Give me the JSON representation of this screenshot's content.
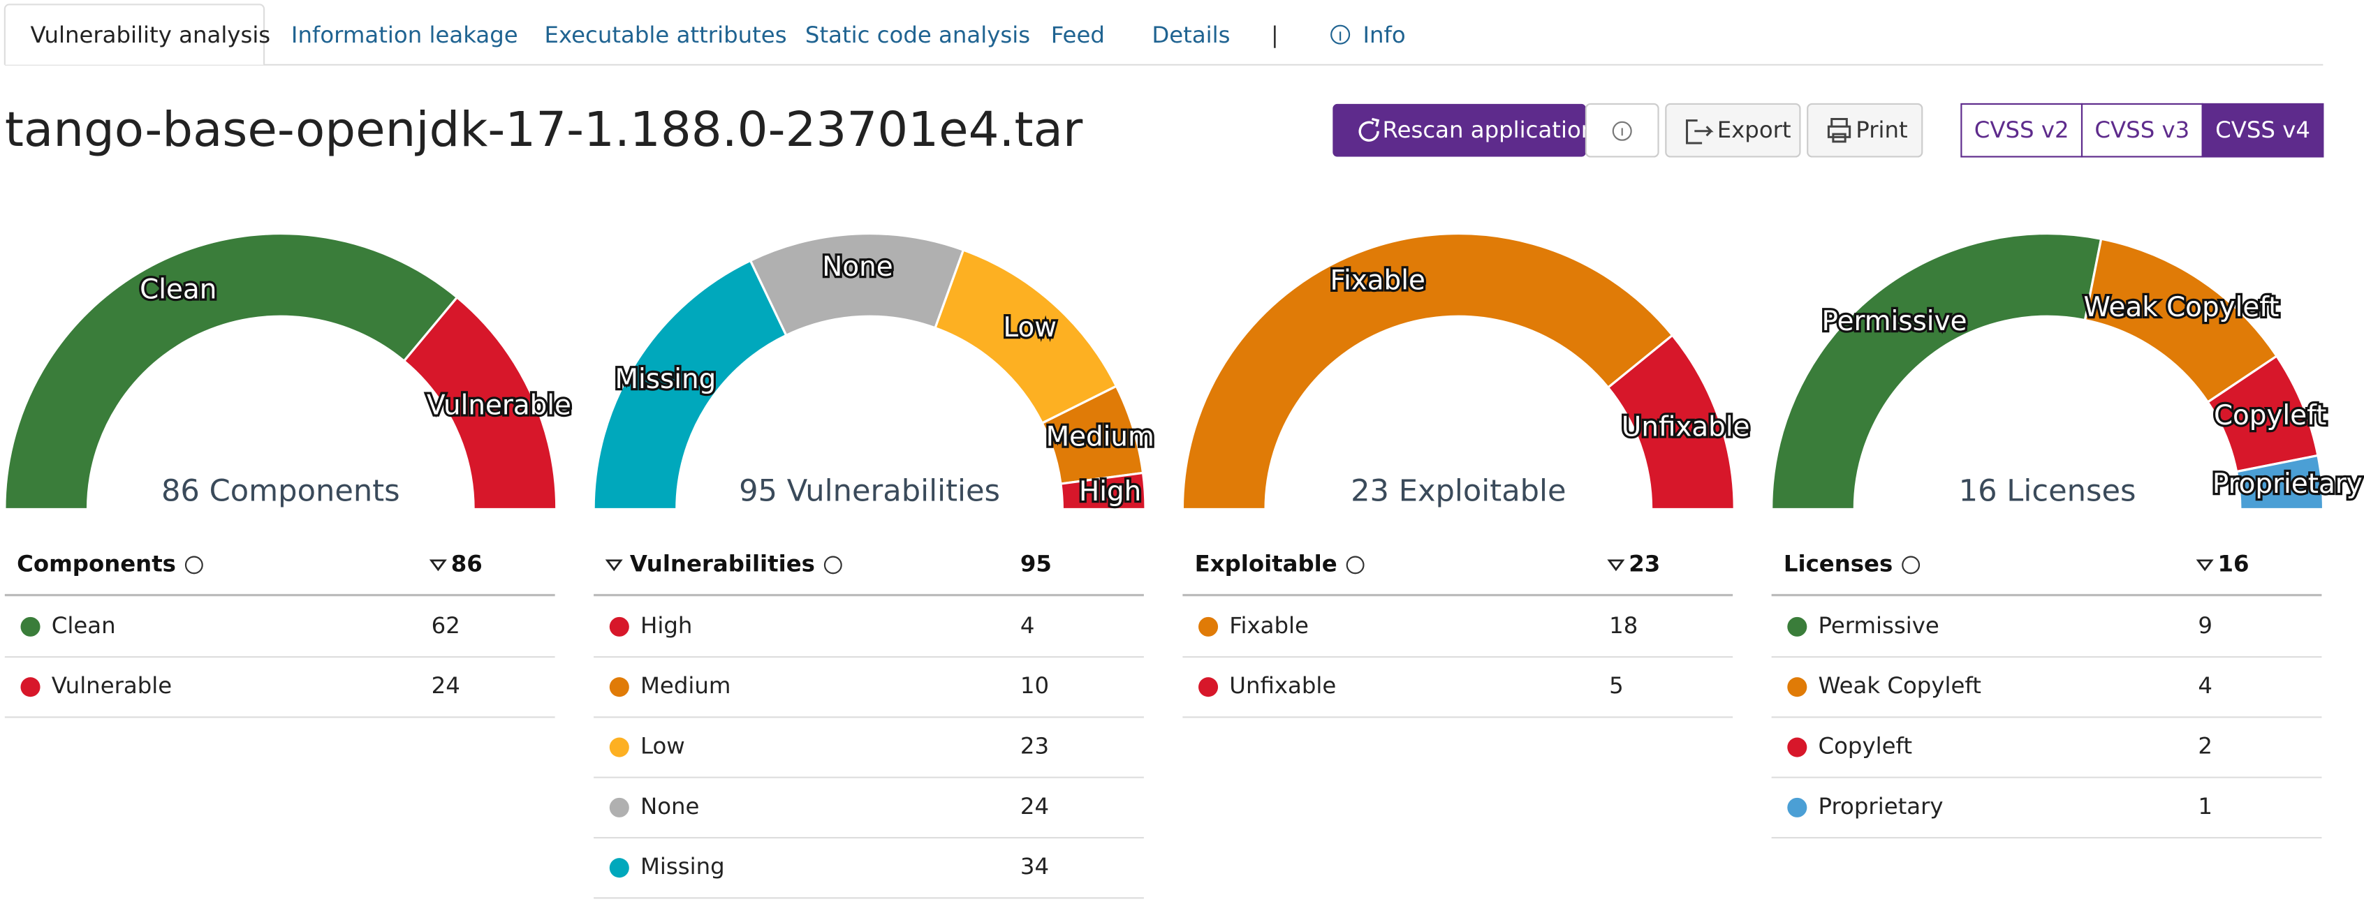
{
  "tabs": [
    "Vulnerability analysis",
    "Information leakage",
    "Executable attributes",
    "Static code analysis",
    "Feed",
    "Details"
  ],
  "separator": "|",
  "info_tab": "Info",
  "active_tab": 0,
  "title": "tango-base-openjdk-17-1.188.0-23701e4.tar",
  "buttons": {
    "rescan": "Rescan application",
    "export": "Export",
    "print": "Print"
  },
  "cvss": [
    "CVSS v2",
    "CVSS v3",
    "CVSS v4"
  ],
  "active_cvss": 2,
  "panels": [
    {
      "center_label": "86 Components",
      "header": "Components",
      "total": 86,
      "sorted_by": "value",
      "reverse": false,
      "rows": [
        {
          "label": "Clean",
          "value": 62,
          "color": "#3a7d3a"
        },
        {
          "label": "Vulnerable",
          "value": 24,
          "color": "#d7172a"
        }
      ]
    },
    {
      "center_label": "95 Vulnerabilities",
      "header": "Vulnerabilities",
      "total": 95,
      "sorted_by": "label",
      "reverse": true,
      "rows": [
        {
          "label": "High",
          "value": 4,
          "color": "#d7172a"
        },
        {
          "label": "Medium",
          "value": 10,
          "color": "#e07b07"
        },
        {
          "label": "Low",
          "value": 23,
          "color": "#fdb022"
        },
        {
          "label": "None",
          "value": 24,
          "color": "#b0b0b0"
        },
        {
          "label": "Missing",
          "value": 34,
          "color": "#00a8bc"
        }
      ]
    },
    {
      "center_label": "23 Exploitable",
      "header": "Exploitable",
      "total": 23,
      "sorted_by": "value",
      "reverse": false,
      "rows": [
        {
          "label": "Fixable",
          "value": 18,
          "color": "#e07b07"
        },
        {
          "label": "Unfixable",
          "value": 5,
          "color": "#d7172a"
        }
      ]
    },
    {
      "center_label": "16 Licenses",
      "header": "Licenses",
      "total": 16,
      "sorted_by": "value",
      "reverse": false,
      "rows": [
        {
          "label": "Permissive",
          "value": 9,
          "color": "#3a7d3a"
        },
        {
          "label": "Weak Copyleft",
          "value": 4,
          "color": "#e07b07"
        },
        {
          "label": "Copyleft",
          "value": 2,
          "color": "#d7172a"
        },
        {
          "label": "Proprietary",
          "value": 1,
          "color": "#4b9fd5"
        }
      ]
    }
  ]
}
